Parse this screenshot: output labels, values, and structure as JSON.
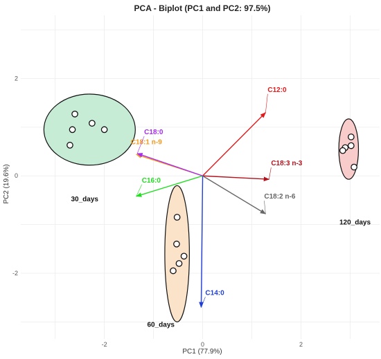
{
  "chart_data": {
    "type": "scatter",
    "title": "PCA - Biplot (PC1 and PC2: 97.5%)",
    "xlabel": "PC1 (77.9%)",
    "ylabel": "PC2 (19.6%)",
    "xlim": [
      -3.7,
      3.6
    ],
    "ylim": [
      -3.35,
      3.3
    ],
    "x_ticks": [
      -2,
      0,
      2
    ],
    "y_ticks": [
      -2,
      0,
      2
    ],
    "grid": true,
    "groups": [
      {
        "name": "30_days",
        "fill": "#c6ecd6",
        "points": [
          [
            -2.6,
            1.27
          ],
          [
            -2.65,
            0.95
          ],
          [
            -2.25,
            1.08
          ],
          [
            -2.0,
            0.95
          ],
          [
            -2.7,
            0.63
          ]
        ],
        "ellipse": {
          "cx": -2.3,
          "cy": 0.95,
          "rx": 0.93,
          "ry": 0.73,
          "rotation_deg": 0
        }
      },
      {
        "name": "60_days",
        "fill": "#fbe3c9",
        "points": [
          [
            -0.52,
            -0.85
          ],
          [
            -0.53,
            -1.4
          ],
          [
            -0.38,
            -1.65
          ],
          [
            -0.48,
            -1.8
          ],
          [
            -0.6,
            -1.95
          ]
        ],
        "ellipse": {
          "cx": -0.52,
          "cy": -1.6,
          "rx": 0.25,
          "ry": 1.4,
          "rotation_deg": 0
        }
      },
      {
        "name": "120_days",
        "fill": "#f9cccc",
        "points": [
          [
            3.02,
            0.8
          ],
          [
            2.9,
            0.58
          ],
          [
            3.02,
            0.62
          ],
          [
            2.85,
            0.52
          ],
          [
            3.08,
            0.18
          ]
        ],
        "ellipse": {
          "cx": 2.97,
          "cy": 0.55,
          "rx": 0.2,
          "ry": 0.62,
          "rotation_deg": 0
        }
      }
    ],
    "loadings": [
      {
        "name": "C12:0",
        "x": 1.28,
        "y": 1.3,
        "color": "#e31a1c"
      },
      {
        "name": "C18:3 n-3",
        "x": 1.35,
        "y": -0.07,
        "color": "#b3121c"
      },
      {
        "name": "C18:2 n-6",
        "x": 1.28,
        "y": -0.78,
        "color": "#666666"
      },
      {
        "name": "C14:0",
        "x": -0.03,
        "y": -2.7,
        "color": "#1f3fd6"
      },
      {
        "name": "C16:0",
        "x": -1.35,
        "y": -0.42,
        "color": "#22dd22"
      },
      {
        "name": "C18:1 n-9",
        "x": -1.35,
        "y": 0.44,
        "color": "#f59a1e"
      },
      {
        "name": "C18:0",
        "x": -1.33,
        "y": 0.46,
        "color": "#a72bf0"
      }
    ]
  }
}
